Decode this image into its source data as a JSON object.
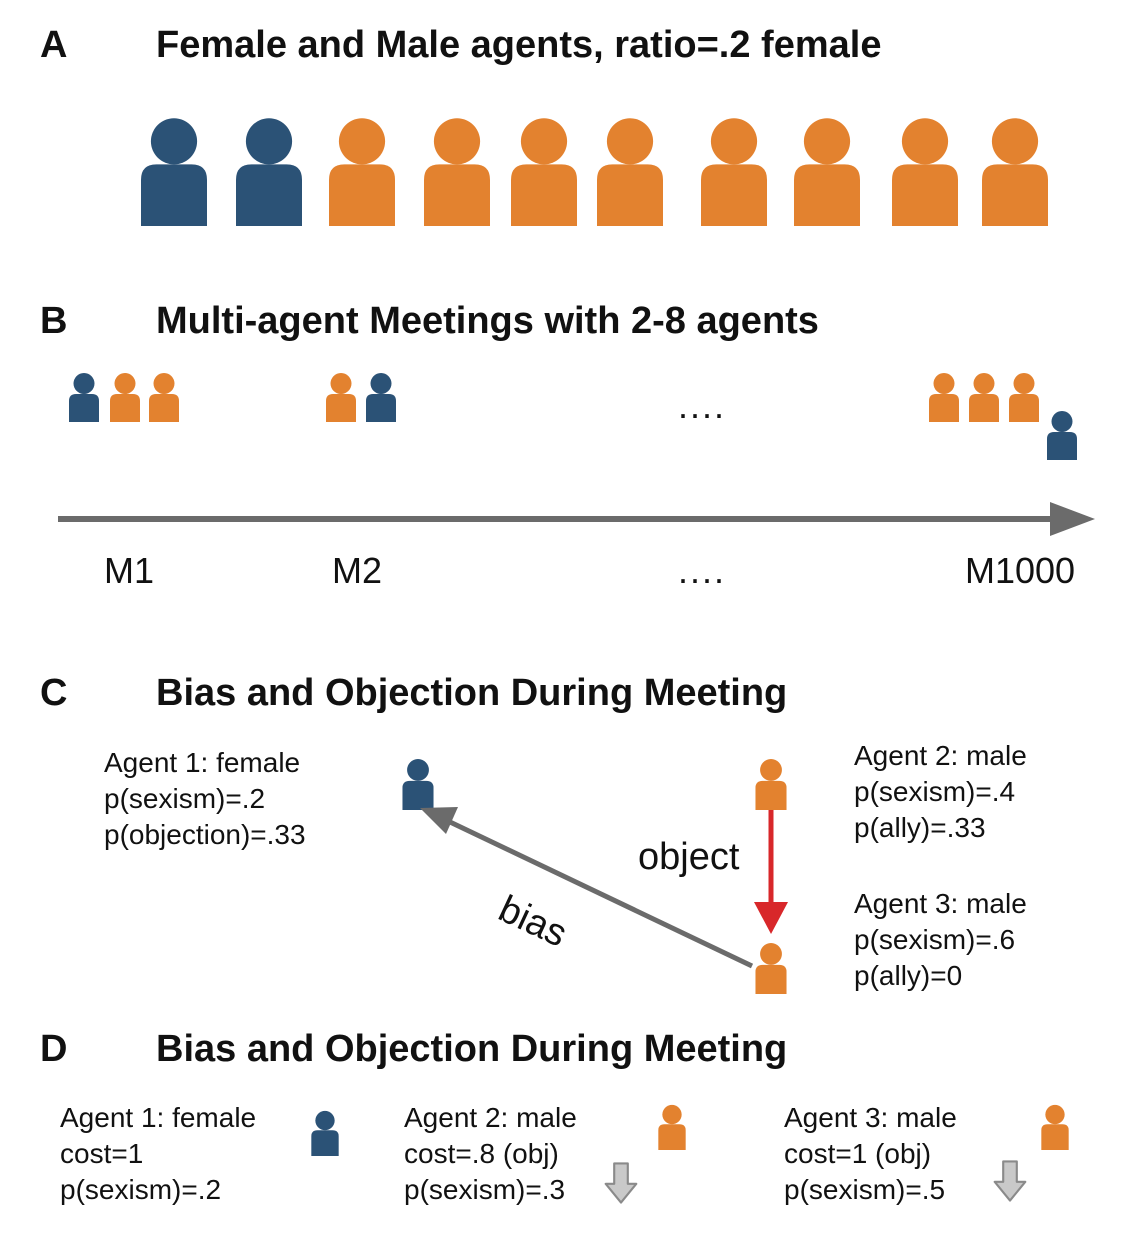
{
  "colors": {
    "female": "#2b5276",
    "male": "#e3822f",
    "arrow_gray": "#6b6b6b",
    "object_red": "#d8272a",
    "down_arrow_fill": "#c9c9c9",
    "down_arrow_stroke": "#8a8a8a"
  },
  "panel_a": {
    "letter": "A",
    "title": "Female and Male agents, ratio=.2 female",
    "agents": [
      "female",
      "female",
      "male",
      "male",
      "male",
      "male",
      "male",
      "male",
      "male",
      "male"
    ]
  },
  "panel_b": {
    "letter": "B",
    "title": "Multi-agent Meetings with 2-8 agents",
    "ellipsis": "....",
    "meetings": [
      {
        "label": "M1",
        "agents": [
          "female",
          "male",
          "male"
        ]
      },
      {
        "label": "M2",
        "agents": [
          "male",
          "female"
        ]
      },
      {
        "label": "M1000",
        "agents": [
          "male",
          "male",
          "male",
          "female"
        ]
      }
    ],
    "axis_ellipsis": "...."
  },
  "panel_c": {
    "letter": "C",
    "title": "Bias and Objection During Meeting",
    "agent1": {
      "role": "female",
      "lines": [
        "Agent 1: female",
        "p(sexism)=.2",
        "p(objection)=.33"
      ]
    },
    "agent2": {
      "role": "male",
      "lines": [
        "Agent 2: male",
        "p(sexism)=.4",
        "p(ally)=.33"
      ]
    },
    "agent3": {
      "role": "male",
      "lines": [
        "Agent 3: male",
        "p(sexism)=.6",
        "p(ally)=0"
      ]
    },
    "bias_label": "bias",
    "object_label": "object"
  },
  "panel_d": {
    "letter": "D",
    "title": "Bias and Objection During Meeting",
    "agent1": {
      "role": "female",
      "lines": [
        "Agent 1: female",
        "cost=1",
        "p(sexism)=.2"
      ],
      "decrease": false
    },
    "agent2": {
      "role": "male",
      "lines": [
        "Agent 2: male",
        "cost=.8 (obj)",
        "p(sexism)=.3"
      ],
      "decrease": true
    },
    "agent3": {
      "role": "male",
      "lines": [
        "Agent 3: male",
        "cost=1 (obj)",
        "p(sexism)=.5"
      ],
      "decrease": true
    }
  }
}
